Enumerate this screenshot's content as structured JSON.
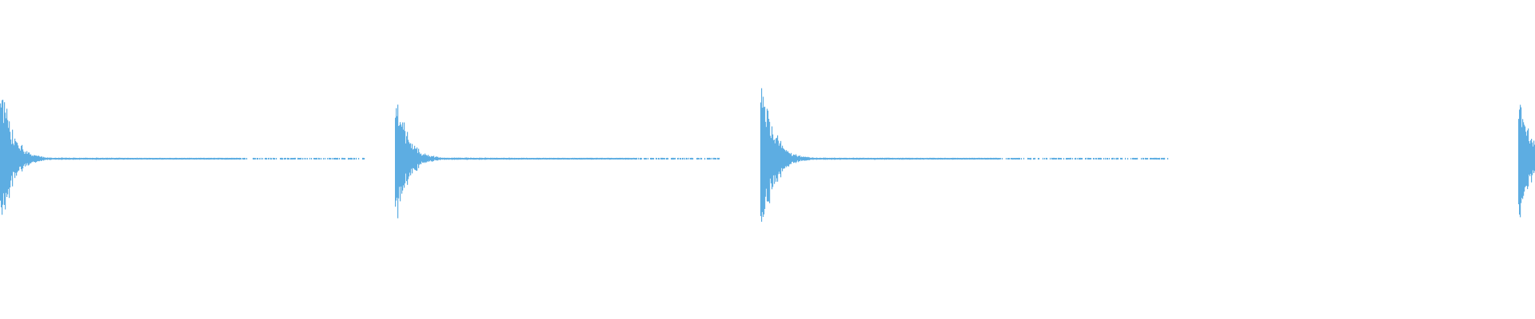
{
  "chart_data": {
    "type": "waveform",
    "title": "",
    "xlabel": "",
    "ylabel": "",
    "ylim": [
      -1,
      1
    ],
    "grid": false,
    "color": "#5dade2",
    "background": "#ffffff",
    "hits": [
      {
        "peak_amplitude": 0.79
      },
      {
        "peak_amplitude": 0.7
      },
      {
        "peak_amplitude": 0.92
      },
      {
        "peak_amplitude": 0.7
      }
    ]
  }
}
